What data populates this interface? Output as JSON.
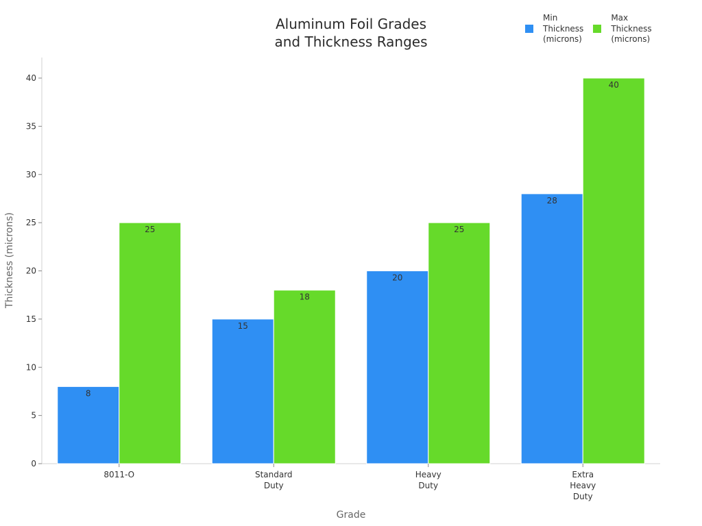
{
  "title_lines": [
    "Aluminum Foil Grades",
    "and Thickness Ranges"
  ],
  "legend": [
    {
      "label": "Min\nThickness\n(microns)",
      "color": "#2f8ff3"
    },
    {
      "label": "Max\nThickness\n(microns)",
      "color": "#66da2a"
    }
  ],
  "chart_data": {
    "type": "bar",
    "title": "Aluminum Foil Grades and Thickness Ranges",
    "xlabel": "Grade",
    "ylabel": "Thickness (microns)",
    "categories": [
      "8011-O",
      "Standard Duty",
      "Heavy Duty",
      "Extra Heavy Duty"
    ],
    "category_label_lines": [
      [
        "8011-O"
      ],
      [
        "Standard",
        "Duty"
      ],
      [
        "Heavy",
        "Duty"
      ],
      [
        "Extra",
        "Heavy",
        "Duty"
      ]
    ],
    "series": [
      {
        "name": "Min Thickness (microns)",
        "color": "#2f8ff3",
        "values": [
          8,
          15,
          20,
          28
        ]
      },
      {
        "name": "Max Thickness (microns)",
        "color": "#66da2a",
        "values": [
          25,
          18,
          25,
          40
        ]
      }
    ],
    "ylim": [
      0,
      42
    ],
    "yticks": [
      0,
      5,
      10,
      15,
      20,
      25,
      30,
      35,
      40
    ],
    "grid": false,
    "legend_position": "top-right",
    "data_labels": true
  }
}
